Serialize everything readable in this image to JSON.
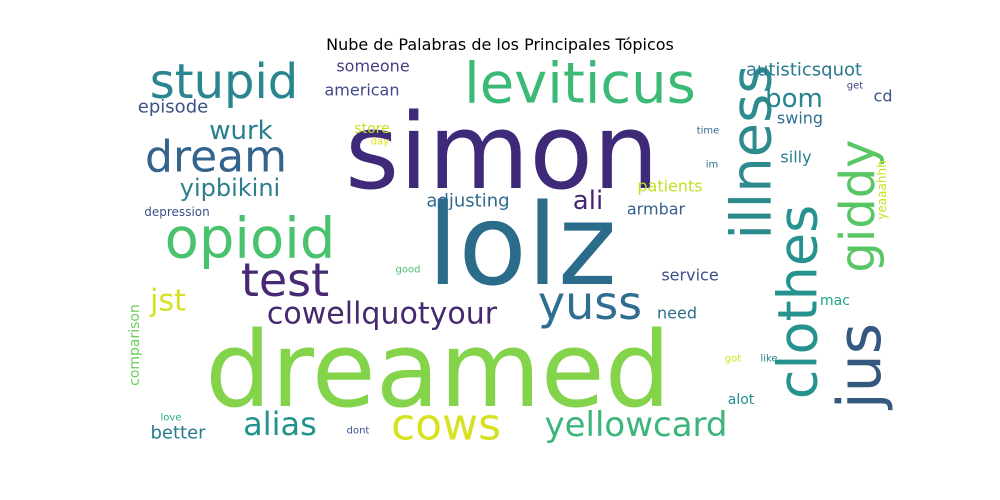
{
  "chart_data": {
    "type": "wordcloud",
    "title": "Nube de Palabras de los Principales Tópicos",
    "words": [
      {
        "text": "simon",
        "weight": 100,
        "color": "#3e2a78",
        "orientation": "horizontal"
      },
      {
        "text": "lolz",
        "weight": 97,
        "color": "#2a6c8a",
        "orientation": "horizontal"
      },
      {
        "text": "dreamed",
        "weight": 92,
        "color": "#84d44b",
        "orientation": "horizontal"
      },
      {
        "text": "clothes",
        "weight": 60,
        "color": "#25928d",
        "orientation": "vertical"
      },
      {
        "text": "jus",
        "weight": 60,
        "color": "#34587f",
        "orientation": "vertical"
      },
      {
        "text": "leviticus",
        "weight": 52,
        "color": "#3bba77",
        "orientation": "horizontal"
      },
      {
        "text": "opioid",
        "weight": 52,
        "color": "#48c26c",
        "orientation": "horizontal"
      },
      {
        "text": "illness",
        "weight": 52,
        "color": "#2d8b8e",
        "orientation": "vertical"
      },
      {
        "text": "stupid",
        "weight": 48,
        "color": "#29858e",
        "orientation": "horizontal"
      },
      {
        "text": "giddy",
        "weight": 48,
        "color": "#58c763",
        "orientation": "vertical"
      },
      {
        "text": "dream",
        "weight": 42,
        "color": "#33648d",
        "orientation": "horizontal"
      },
      {
        "text": "test",
        "weight": 42,
        "color": "#472a73",
        "orientation": "horizontal"
      },
      {
        "text": "yuss",
        "weight": 42,
        "color": "#2f6e8e",
        "orientation": "horizontal"
      },
      {
        "text": "cows",
        "weight": 40,
        "color": "#d8e11f",
        "orientation": "horizontal"
      },
      {
        "text": "yellowcard",
        "weight": 34,
        "color": "#3bb57a",
        "orientation": "horizontal"
      },
      {
        "text": "cowellquotyour",
        "weight": 30,
        "color": "#46286f",
        "orientation": "horizontal"
      },
      {
        "text": "alias",
        "weight": 29,
        "color": "#21928c",
        "orientation": "horizontal"
      },
      {
        "text": "jst",
        "weight": 28,
        "color": "#d6e220",
        "orientation": "horizontal"
      },
      {
        "text": "wurk",
        "weight": 24,
        "color": "#277f8e",
        "orientation": "horizontal"
      },
      {
        "text": "bom",
        "weight": 24,
        "color": "#25858e",
        "orientation": "horizontal"
      },
      {
        "text": "ali",
        "weight": 24,
        "color": "#482475",
        "orientation": "horizontal"
      },
      {
        "text": "yipbikini",
        "weight": 23,
        "color": "#2e7e8e",
        "orientation": "horizontal"
      },
      {
        "text": "adjusting",
        "weight": 18,
        "color": "#306a8e",
        "orientation": "horizontal"
      },
      {
        "text": "autisticsquot",
        "weight": 18,
        "color": "#2a798e",
        "orientation": "horizontal"
      },
      {
        "text": "better",
        "weight": 18,
        "color": "#297b8e",
        "orientation": "horizontal"
      },
      {
        "text": "episode",
        "weight": 18,
        "color": "#3b528b",
        "orientation": "horizontal"
      },
      {
        "text": "american",
        "weight": 16,
        "color": "#3f4889",
        "orientation": "horizontal"
      },
      {
        "text": "someone",
        "weight": 16,
        "color": "#433e85",
        "orientation": "horizontal"
      },
      {
        "text": "swing",
        "weight": 16,
        "color": "#2e6f8e",
        "orientation": "horizontal"
      },
      {
        "text": "silly",
        "weight": 16,
        "color": "#287c8e",
        "orientation": "horizontal"
      },
      {
        "text": "armbar",
        "weight": 16,
        "color": "#35608d",
        "orientation": "horizontal"
      },
      {
        "text": "service",
        "weight": 16,
        "color": "#3d4d8a",
        "orientation": "horizontal"
      },
      {
        "text": "cd",
        "weight": 16,
        "color": "#3a538b",
        "orientation": "horizontal"
      },
      {
        "text": "patients",
        "weight": 16,
        "color": "#c2df23",
        "orientation": "horizontal"
      },
      {
        "text": "need",
        "weight": 16,
        "color": "#2e6e8e",
        "orientation": "horizontal"
      },
      {
        "text": "mac",
        "weight": 14,
        "color": "#20a386",
        "orientation": "horizontal"
      },
      {
        "text": "alot",
        "weight": 14,
        "color": "#21908d",
        "orientation": "horizontal"
      },
      {
        "text": "store",
        "weight": 14,
        "color": "#c8e020",
        "orientation": "horizontal"
      },
      {
        "text": "comparison",
        "weight": 14,
        "color": "#6ccd5a",
        "orientation": "vertical"
      },
      {
        "text": "yeaaahhh",
        "weight": 12,
        "color": "#cde11d",
        "orientation": "vertical"
      },
      {
        "text": "depression",
        "weight": 12,
        "color": "#3b528b",
        "orientation": "horizontal"
      },
      {
        "text": "get",
        "weight": 10,
        "color": "#3f4788",
        "orientation": "horizontal"
      },
      {
        "text": "time",
        "weight": 10,
        "color": "#31688e",
        "orientation": "horizontal"
      },
      {
        "text": "im",
        "weight": 10,
        "color": "#2c728e",
        "orientation": "horizontal"
      },
      {
        "text": "good",
        "weight": 10,
        "color": "#4ac16d",
        "orientation": "horizontal"
      },
      {
        "text": "day",
        "weight": 10,
        "color": "#e2e418",
        "orientation": "horizontal"
      },
      {
        "text": "got",
        "weight": 10,
        "color": "#d2e21b",
        "orientation": "horizontal"
      },
      {
        "text": "like",
        "weight": 10,
        "color": "#27808e",
        "orientation": "horizontal"
      },
      {
        "text": "love",
        "weight": 10,
        "color": "#25ac82",
        "orientation": "horizontal"
      },
      {
        "text": "dont",
        "weight": 10,
        "color": "#39558c",
        "orientation": "horizontal"
      }
    ]
  }
}
